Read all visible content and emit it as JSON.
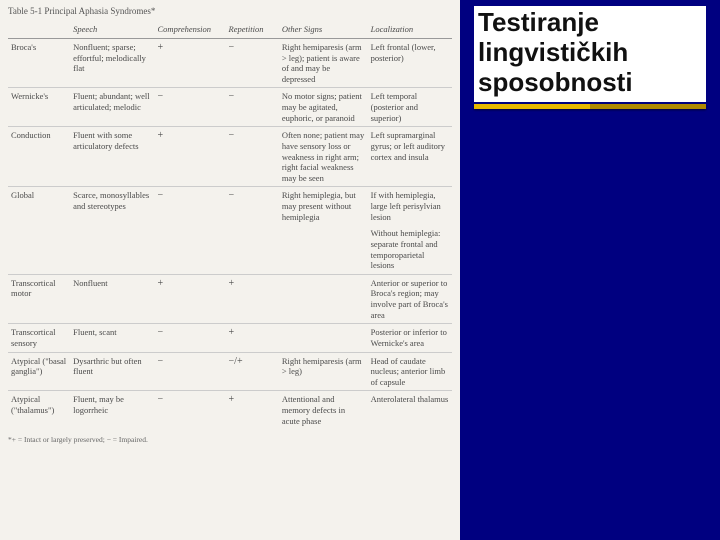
{
  "slide": {
    "background_color": "#000080",
    "title": "Testiranje lingvističkih sposobnosti",
    "title_fontsize": 26,
    "title_color": "#111111",
    "title_bg": "#ffffff",
    "underline_colors": [
      "#e8b800",
      "#b08a00"
    ]
  },
  "scan": {
    "caption": "Table 5-1  Principal Aphasia Syndromes*",
    "background_color": "#f4f2ed",
    "text_color": "#4a4a4a",
    "fontsize": 8.5,
    "columns": [
      "",
      "Speech",
      "Comprehension",
      "Repetition",
      "Other Signs",
      "Localization"
    ],
    "rows": [
      {
        "type": "Broca's",
        "speech": "Nonfluent; sparse; effortful; melodically flat",
        "comp": "+",
        "rep": "−",
        "other": "Right hemiparesis (arm > leg); patient is aware of and may be depressed",
        "loc": "Left frontal (lower, posterior)"
      },
      {
        "type": "Wernicke's",
        "speech": "Fluent; abundant; well articulated; melodic",
        "comp": "−",
        "rep": "−",
        "other": "No motor signs; patient may be agitated, euphoric, or paranoid",
        "loc": "Left temporal (posterior and superior)"
      },
      {
        "type": "Conduction",
        "speech": "Fluent with some articulatory defects",
        "comp": "+",
        "rep": "−",
        "other": "Often none; patient may have sensory loss or weakness in right arm; right facial weakness may be seen",
        "loc": "Left supramarginal gyrus; or left auditory cortex and insula"
      },
      {
        "type": "Global",
        "speech": "Scarce, monosyllables and stereotypes",
        "comp": "−",
        "rep": "−",
        "other": "Right hemiplegia, but may present without hemiplegia",
        "loc": "If with hemiplegia, large left perisylvian lesion"
      },
      {
        "type": "",
        "speech": "",
        "comp": "",
        "rep": "",
        "other": "",
        "loc": "Without hemiplegia: separate frontal and temporoparietal lesions"
      },
      {
        "type": "Transcortical motor",
        "speech": "Nonfluent",
        "comp": "+",
        "rep": "+",
        "other": "",
        "loc": "Anterior or superior to Broca's region; may involve part of Broca's area"
      },
      {
        "type": "Transcortical sensory",
        "speech": "Fluent, scant",
        "comp": "−",
        "rep": "+",
        "other": "",
        "loc": "Posterior or inferior to Wernicke's area"
      },
      {
        "type": "Atypical (\"basal ganglia\")",
        "speech": "Dysarthric but often fluent",
        "comp": "−",
        "rep": "−/+",
        "other": "Right hemiparesis (arm > leg)",
        "loc": "Head of caudate nucleus; anterior limb of capsule"
      },
      {
        "type": "Atypical (\"thalamus\")",
        "speech": "Fluent, may be logorrheic",
        "comp": "−",
        "rep": "+",
        "other": "Attentional and memory defects in acute phase",
        "loc": "Anterolateral thalamus"
      }
    ],
    "footnote": "*+ = Intact or largely preserved;  − = Impaired."
  }
}
